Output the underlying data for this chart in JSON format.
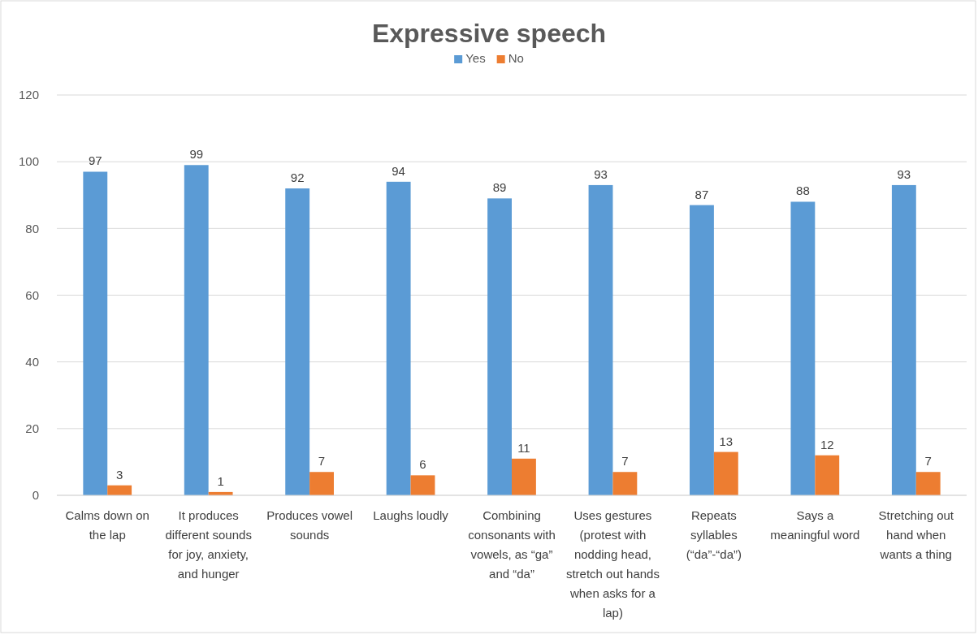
{
  "chart_data": {
    "type": "bar",
    "title": "Expressive speech",
    "categories": [
      "Calms down on the lap",
      "It produces different sounds for joy, anxiety, and hunger",
      "Produces vowel sounds",
      "Laughs loudly",
      "Combining consonants with vowels, as “ga” and “da”",
      "Uses gestures (protest with nodding head, stretch out hands when asks for a lap)",
      "Repeats syllables (“da”-“da”)",
      "Says a meaningful word",
      "Stretching out hand when wants a thing"
    ],
    "series": [
      {
        "name": "Yes",
        "color": "#5b9bd5",
        "values": [
          97,
          99,
          92,
          94,
          89,
          93,
          87,
          88,
          93
        ]
      },
      {
        "name": "No",
        "color": "#ed7d31",
        "values": [
          3,
          1,
          7,
          6,
          11,
          7,
          13,
          12,
          7
        ]
      }
    ],
    "ylim": [
      0,
      120
    ],
    "yticks": [
      0,
      20,
      40,
      60,
      80,
      100,
      120
    ],
    "grid": "y",
    "legend": "top",
    "data_labels": true
  }
}
